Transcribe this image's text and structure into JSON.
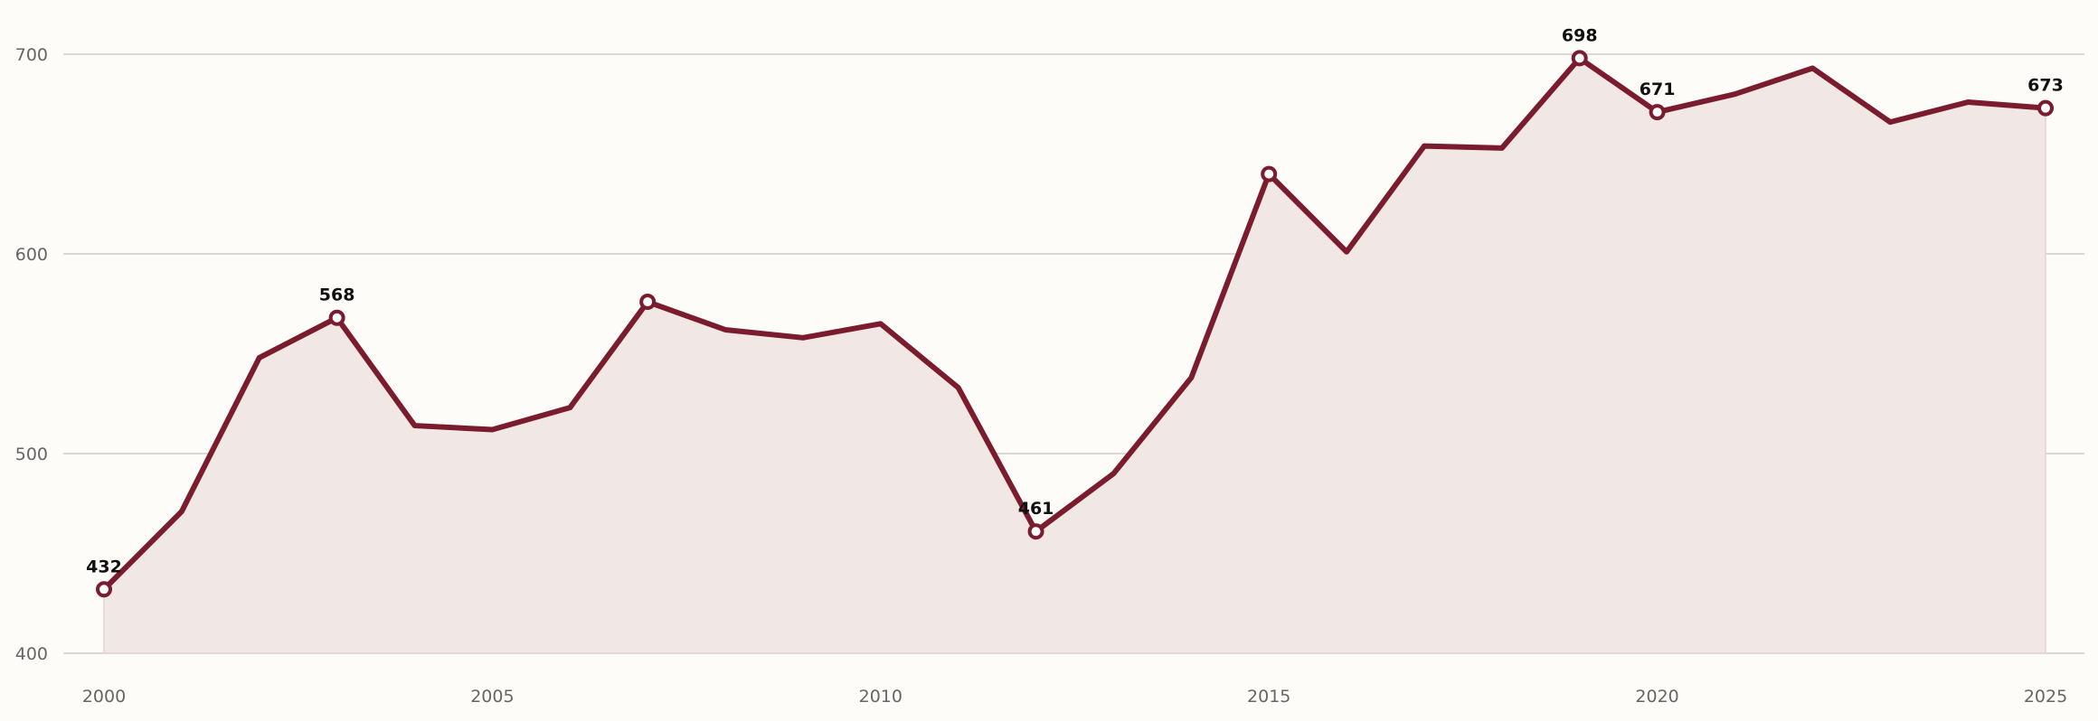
{
  "chart_data": {
    "type": "area",
    "x": [
      2000,
      2001,
      2002,
      2003,
      2004,
      2005,
      2006,
      2007,
      2008,
      2009,
      2010,
      2011,
      2012,
      2013,
      2014,
      2015,
      2016,
      2017,
      2018,
      2019,
      2020,
      2021,
      2022,
      2023,
      2024,
      2025
    ],
    "values": [
      432,
      471,
      548,
      568,
      514,
      512,
      523,
      576,
      562,
      558,
      565,
      533,
      461,
      490,
      538,
      640,
      601,
      654,
      653,
      698,
      671,
      680,
      693,
      666,
      676,
      673
    ],
    "marked_points": [
      2000,
      2003,
      2007,
      2012,
      2015,
      2019,
      2020,
      2025
    ],
    "data_labels": [
      {
        "x": 2000,
        "text": "432"
      },
      {
        "x": 2003,
        "text": "568"
      },
      {
        "x": 2012,
        "text": "461"
      },
      {
        "x": 2019,
        "text": "698"
      },
      {
        "x": 2020,
        "text": "671"
      },
      {
        "x": 2025,
        "text": "673"
      }
    ],
    "ylim": [
      400,
      700
    ],
    "yticks": [
      400,
      500,
      600,
      700
    ],
    "xticks": [
      2000,
      2005,
      2010,
      2015,
      2020,
      2025
    ],
    "title": "",
    "xlabel": "",
    "ylabel": "",
    "grid": "horizontal",
    "legend": "none",
    "colors": {
      "line": "#7a1c2e",
      "fill": "#f1e7e4",
      "marker_fill": "#ffffff",
      "background": "#fdfcf8"
    }
  }
}
